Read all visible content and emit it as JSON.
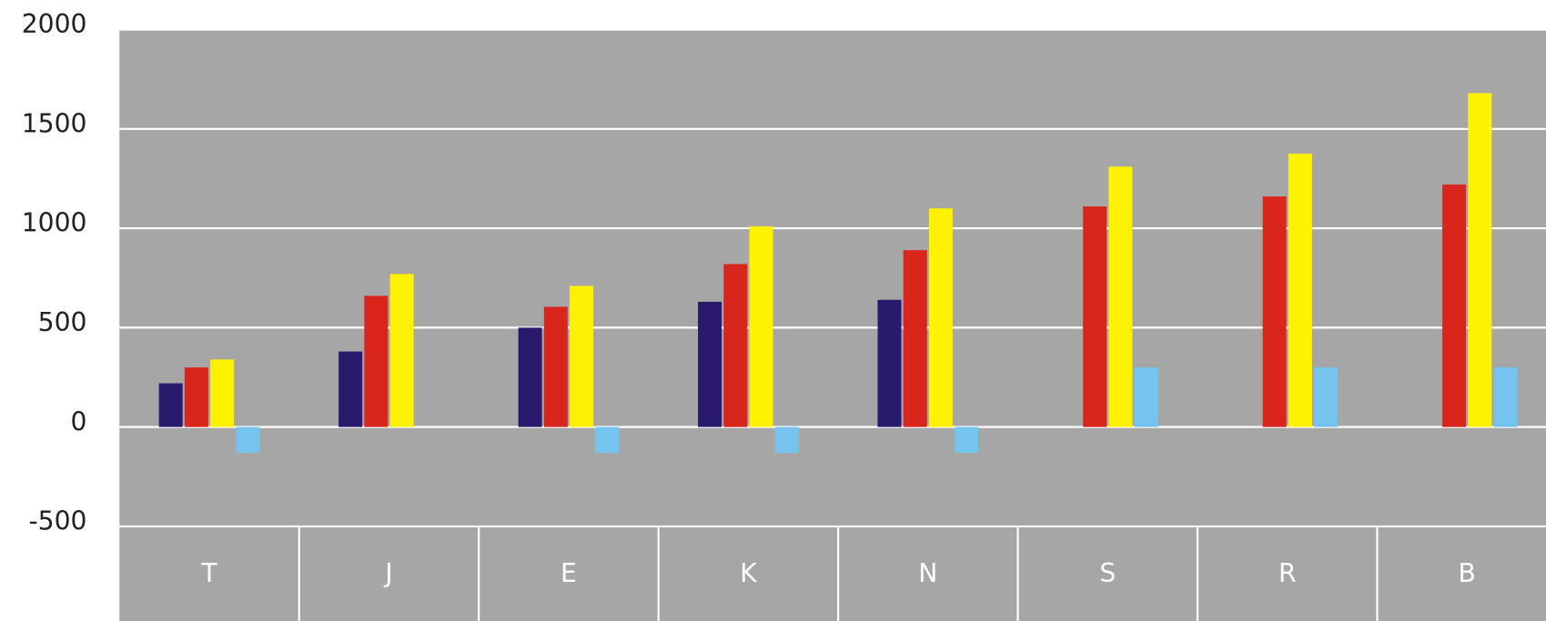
{
  "chart_data": {
    "type": "bar",
    "categories": [
      "T",
      "J",
      "E",
      "K",
      "N",
      "S",
      "R",
      "B"
    ],
    "series": [
      {
        "color": "#2a1a6e",
        "values": [
          220,
          380,
          500,
          630,
          640,
          null,
          null,
          null
        ]
      },
      {
        "color": "#d9261c",
        "values": [
          300,
          660,
          605,
          820,
          890,
          1110,
          1160,
          1220
        ]
      },
      {
        "color": "#fff200",
        "values": [
          340,
          770,
          710,
          1010,
          1100,
          1310,
          1375,
          1680
        ]
      },
      {
        "color": "#75c4f0",
        "values": [
          -130,
          null,
          -130,
          -130,
          -130,
          300,
          300,
          300
        ]
      }
    ],
    "ylim": [
      -500,
      2000
    ],
    "yticks": [
      -500,
      0,
      500,
      1000,
      1500,
      2000
    ],
    "grid": true
  }
}
